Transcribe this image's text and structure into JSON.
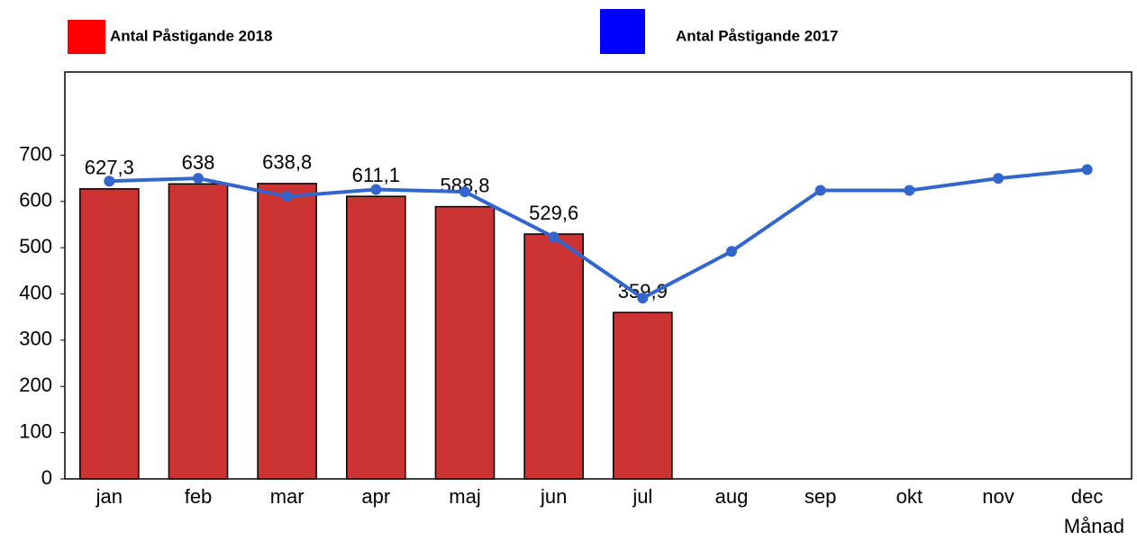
{
  "chart_data": {
    "type": "bar",
    "categories": [
      "jan",
      "feb",
      "mar",
      "apr",
      "maj",
      "jun",
      "jul",
      "aug",
      "sep",
      "okt",
      "nov",
      "dec"
    ],
    "x_label": "Månad",
    "series": [
      {
        "name": "Antal Påstigande 2018",
        "type": "bar",
        "color": "#cc3333",
        "legend_color": "#ff0000",
        "values": [
          627.3,
          638,
          638.8,
          611.1,
          588.8,
          529.6,
          359.9,
          null,
          null,
          null,
          null,
          null
        ],
        "value_labels": [
          "627,3",
          "638",
          "638,8",
          "611,1",
          "588,8",
          "529,6",
          "359,9",
          null,
          null,
          null,
          null,
          null
        ]
      },
      {
        "name": "Antal Påstigande 2017",
        "type": "line",
        "color": "#3366cc",
        "legend_color": "#0000ff",
        "values": [
          644,
          650,
          611,
          626,
          621,
          523,
          391,
          492,
          624,
          624,
          650,
          669
        ]
      }
    ],
    "ylim": [
      0,
      880
    ],
    "yticks": [
      0,
      100,
      200,
      300,
      400,
      500,
      600,
      700
    ],
    "grid": false
  }
}
